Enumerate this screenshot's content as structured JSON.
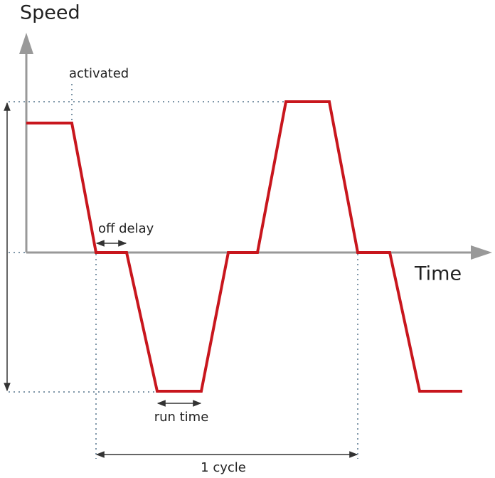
{
  "axes": {
    "y_label": "Speed",
    "x_label": "Time"
  },
  "annotations": {
    "activated": "activated",
    "off_delay": "off delay",
    "run_time": "run time",
    "cycle": "1 cycle"
  }
}
